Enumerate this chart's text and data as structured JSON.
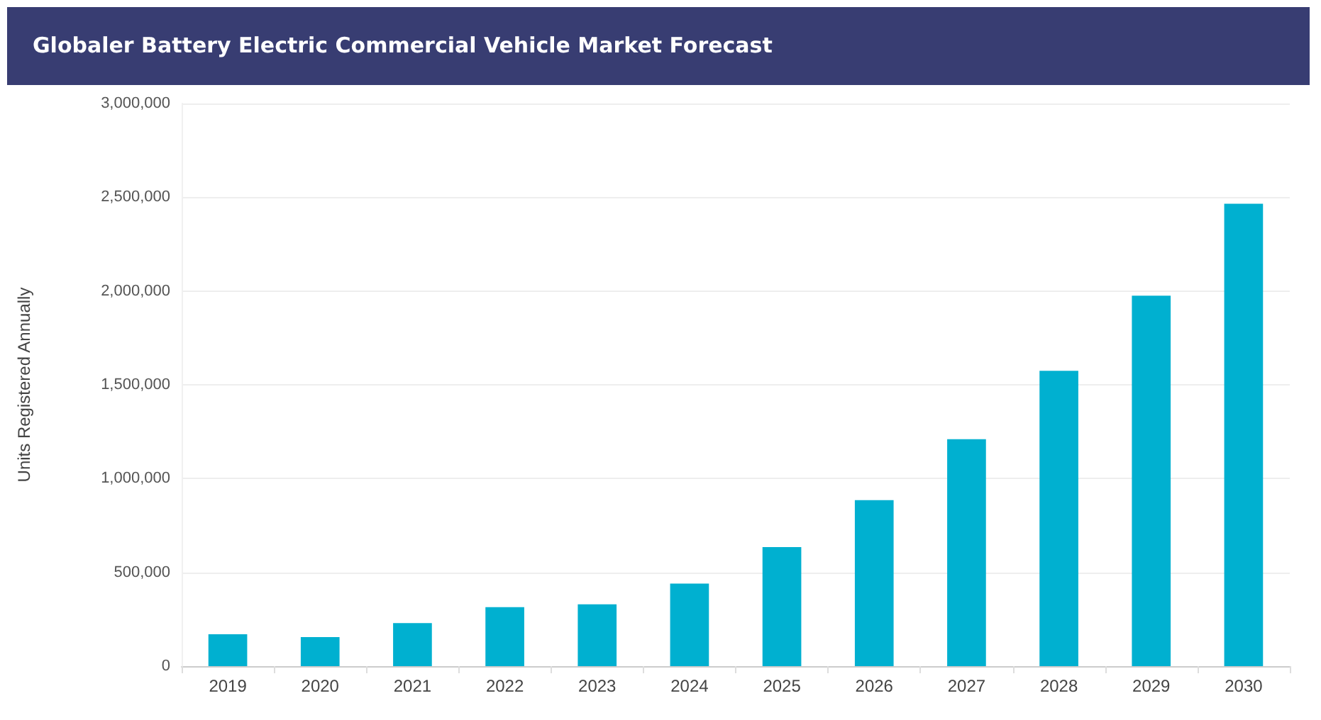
{
  "chart_data": {
    "type": "bar",
    "title": "Globaler Battery Electric Commercial Vehicle Market Forecast",
    "ylabel": "Units Registered Annually",
    "categories": [
      "2019",
      "2020",
      "2021",
      "2022",
      "2023",
      "2024",
      "2025",
      "2026",
      "2027",
      "2028",
      "2029",
      "2030"
    ],
    "values": [
      170000,
      155000,
      230000,
      315000,
      330000,
      440000,
      635000,
      885000,
      1210000,
      1575000,
      1975000,
      2465000
    ],
    "color": "#00b0d0",
    "ylim": [
      0,
      3000000
    ],
    "yticks": [
      0,
      {
        "value": 500000,
        "label": "500,000"
      },
      {
        "value": 1000000,
        "label": "1,000,000"
      },
      {
        "value": 1500000,
        "label": "1,500,000"
      },
      {
        "value": 2000000,
        "label": "2,000,000"
      },
      {
        "value": 2500000,
        "label": "2,500,000"
      },
      {
        "value": 3000000,
        "label": "3,000,000"
      }
    ],
    "grid": "y"
  }
}
